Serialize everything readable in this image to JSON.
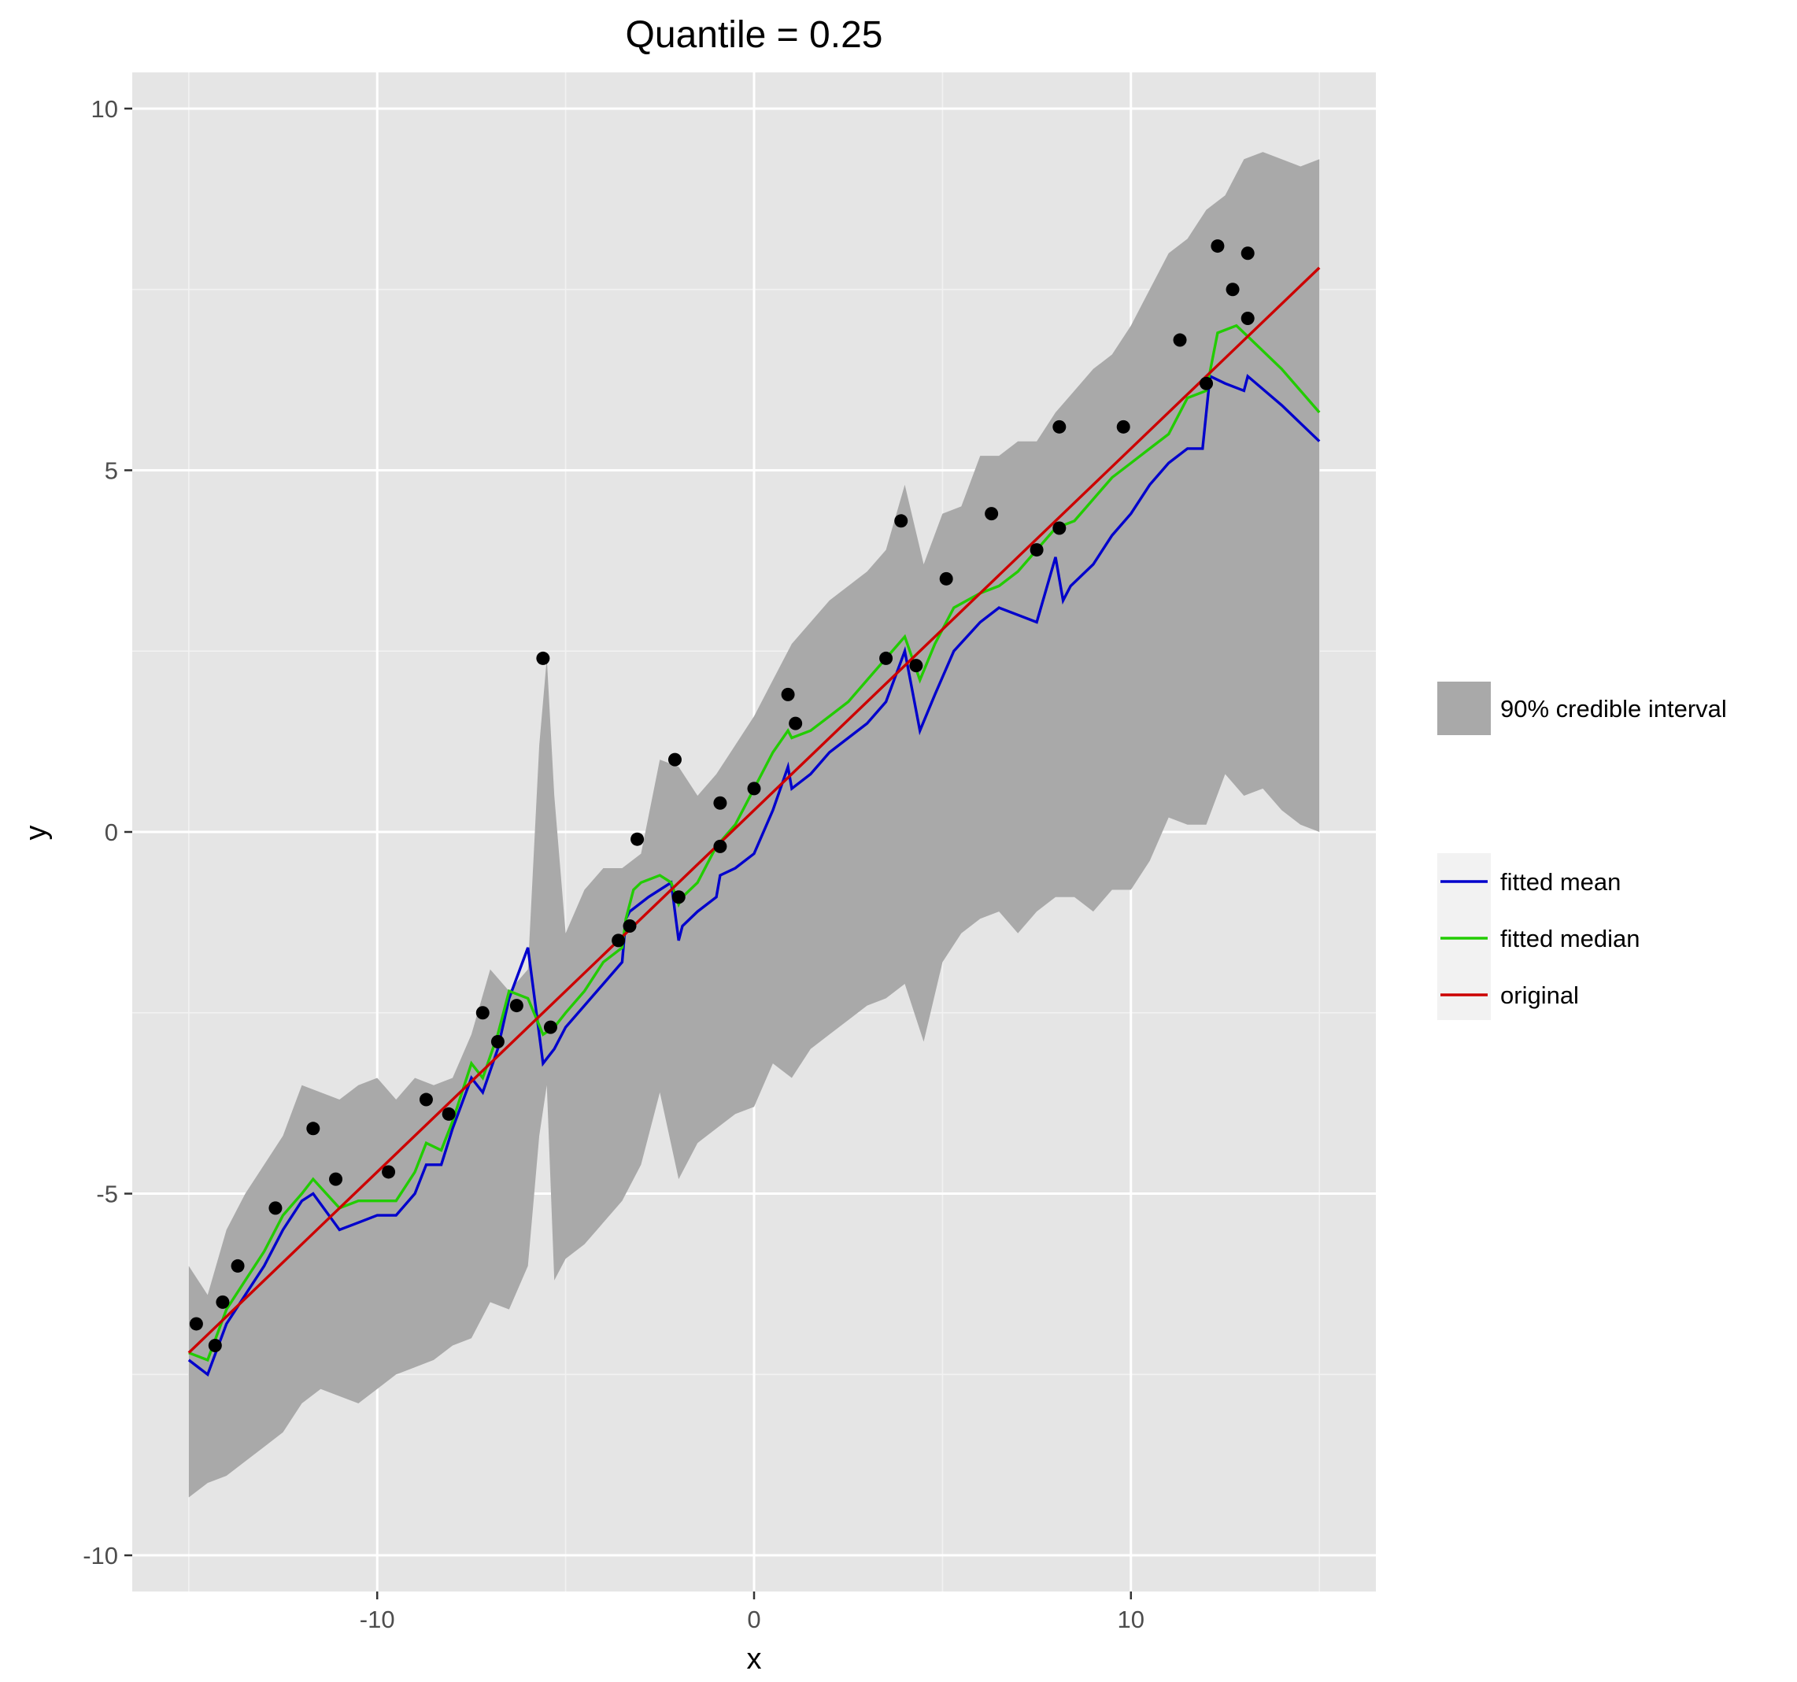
{
  "chart_data": {
    "type": "line",
    "title": "Quantile = 0.25",
    "xlabel": "x",
    "ylabel": "y",
    "xlim": [
      -16.5,
      16.5
    ],
    "ylim": [
      -10.5,
      10.5
    ],
    "x_ticks": [
      -10,
      0,
      10
    ],
    "y_ticks": [
      10,
      5,
      0,
      -5,
      -10
    ],
    "x_tick_labels": [
      "-10",
      "0",
      "10"
    ],
    "y_tick_labels": [
      "10",
      "5",
      "0",
      "-5",
      "-10"
    ],
    "grid": true,
    "legend_position": "right",
    "colors": {
      "panel": "#e5e5e5",
      "grid": "#ffffff",
      "band": "#a9a9a9",
      "mean": "#0000cc",
      "median": "#22cc00",
      "original": "#cc0000",
      "points": "#000000"
    },
    "legend": {
      "band_label": "90% credible interval",
      "line_labels": [
        "fitted mean",
        "fitted median",
        "original"
      ]
    },
    "band": {
      "x": [
        -15,
        -14.5,
        -14,
        -13.5,
        -13,
        -12.5,
        -12,
        -11.5,
        -11,
        -10.5,
        -10,
        -9.5,
        -9,
        -8.5,
        -8,
        -7.5,
        -7,
        -6.5,
        -6,
        -5.7,
        -5.5,
        -5.3,
        -5,
        -4.5,
        -4,
        -3.5,
        -3,
        -2.5,
        -2,
        -1.5,
        -1,
        -0.5,
        0,
        0.5,
        1,
        1.5,
        2,
        2.5,
        3,
        3.5,
        4,
        4.5,
        5,
        5.5,
        6,
        6.5,
        7,
        7.5,
        8,
        8.5,
        9,
        9.5,
        10,
        10.5,
        11,
        11.5,
        12,
        12.5,
        13,
        13.5,
        14,
        14.5,
        15
      ],
      "upper": [
        -6.0,
        -6.4,
        -5.5,
        -5.0,
        -4.6,
        -4.2,
        -3.5,
        -3.6,
        -3.7,
        -3.5,
        -3.4,
        -3.7,
        -3.4,
        -3.5,
        -3.4,
        -2.8,
        -1.9,
        -2.2,
        -1.9,
        1.2,
        2.4,
        0.5,
        -1.4,
        -0.8,
        -0.5,
        -0.5,
        -0.3,
        1.0,
        0.9,
        0.5,
        0.8,
        1.2,
        1.6,
        2.1,
        2.6,
        2.9,
        3.2,
        3.4,
        3.6,
        3.9,
        4.8,
        3.7,
        4.4,
        4.5,
        5.2,
        5.2,
        5.4,
        5.4,
        5.8,
        6.1,
        6.4,
        6.6,
        7.0,
        7.5,
        8.0,
        8.2,
        8.6,
        8.8,
        9.3,
        9.4,
        9.3,
        9.2,
        9.3
      ],
      "lower": [
        -9.2,
        -9.0,
        -8.9,
        -8.7,
        -8.5,
        -8.3,
        -7.9,
        -7.7,
        -7.8,
        -7.9,
        -7.7,
        -7.5,
        -7.4,
        -7.3,
        -7.1,
        -7.0,
        -6.5,
        -6.6,
        -6.0,
        -4.2,
        -3.5,
        -6.2,
        -5.9,
        -5.7,
        -5.4,
        -5.1,
        -4.6,
        -3.6,
        -4.8,
        -4.3,
        -4.1,
        -3.9,
        -3.8,
        -3.2,
        -3.4,
        -3.0,
        -2.8,
        -2.6,
        -2.4,
        -2.3,
        -2.1,
        -2.9,
        -1.8,
        -1.4,
        -1.2,
        -1.1,
        -1.4,
        -1.1,
        -0.9,
        -0.9,
        -1.1,
        -0.8,
        -0.8,
        -0.4,
        0.2,
        0.1,
        0.1,
        0.8,
        0.5,
        0.6,
        0.3,
        0.1,
        0.0
      ]
    },
    "series": [
      {
        "name": "fitted mean",
        "x": [
          -15,
          -14.5,
          -14,
          -13.5,
          -13,
          -12.5,
          -12,
          -11.7,
          -11,
          -10.5,
          -10,
          -9.5,
          -9,
          -8.7,
          -8.3,
          -8,
          -7.5,
          -7.2,
          -6.8,
          -6.5,
          -6,
          -5.6,
          -5.3,
          -5,
          -4.5,
          -4,
          -3.5,
          -3.4,
          -3.3,
          -2.8,
          -2.2,
          -2,
          -1.9,
          -1.5,
          -1,
          -0.9,
          -0.5,
          0,
          0.5,
          0.9,
          1,
          1.5,
          2,
          2.5,
          3,
          3.5,
          4,
          4.4,
          4.8,
          5.3,
          6,
          6.5,
          7,
          7.5,
          8,
          8.2,
          8.4,
          9,
          9.5,
          10,
          10.5,
          11,
          11.5,
          11.9,
          12.1,
          12.5,
          13,
          13.1,
          14,
          15
        ],
        "values": [
          -7.3,
          -7.5,
          -6.8,
          -6.4,
          -6.0,
          -5.5,
          -5.1,
          -5.0,
          -5.5,
          -5.4,
          -5.3,
          -5.3,
          -5.0,
          -4.6,
          -4.6,
          -4.1,
          -3.4,
          -3.6,
          -3.0,
          -2.3,
          -1.6,
          -3.2,
          -3.0,
          -2.7,
          -2.4,
          -2.1,
          -1.8,
          -1.2,
          -1.1,
          -0.9,
          -0.7,
          -1.5,
          -1.3,
          -1.1,
          -0.9,
          -0.6,
          -0.5,
          -0.3,
          0.3,
          0.9,
          0.6,
          0.8,
          1.1,
          1.3,
          1.5,
          1.8,
          2.5,
          1.4,
          1.9,
          2.5,
          2.9,
          3.1,
          3.0,
          2.9,
          3.8,
          3.2,
          3.4,
          3.7,
          4.1,
          4.4,
          4.8,
          5.1,
          5.3,
          5.3,
          6.3,
          6.2,
          6.1,
          6.3,
          5.9,
          5.4
        ]
      },
      {
        "name": "fitted median",
        "x": [
          -15,
          -14.5,
          -14,
          -13.5,
          -13,
          -12.5,
          -12,
          -11.7,
          -11,
          -10.5,
          -10,
          -9.5,
          -9,
          -8.7,
          -8.3,
          -8,
          -7.5,
          -7.2,
          -6.8,
          -6.5,
          -6,
          -5.6,
          -5.3,
          -5,
          -4.5,
          -4,
          -3.5,
          -3.4,
          -3.2,
          -3,
          -2.5,
          -2.2,
          -2,
          -1.9,
          -1.5,
          -1,
          -0.5,
          0,
          0.5,
          0.9,
          1,
          1.5,
          2,
          2.5,
          3,
          3.5,
          4,
          4.4,
          4.8,
          5.3,
          6,
          6.5,
          7,
          7.5,
          8,
          8.5,
          9,
          9.5,
          10,
          10.5,
          11,
          11.5,
          12,
          12.3,
          12.8,
          13.2,
          14,
          15
        ],
        "values": [
          -7.2,
          -7.3,
          -6.6,
          -6.2,
          -5.8,
          -5.3,
          -5.0,
          -4.8,
          -5.2,
          -5.1,
          -5.1,
          -5.1,
          -4.7,
          -4.3,
          -4.4,
          -4.0,
          -3.2,
          -3.4,
          -2.8,
          -2.2,
          -2.3,
          -2.8,
          -2.7,
          -2.5,
          -2.2,
          -1.8,
          -1.6,
          -1.2,
          -0.8,
          -0.7,
          -0.6,
          -0.7,
          -1.0,
          -0.9,
          -0.7,
          -0.2,
          0.1,
          0.6,
          1.1,
          1.4,
          1.3,
          1.4,
          1.6,
          1.8,
          2.1,
          2.4,
          2.7,
          2.1,
          2.6,
          3.1,
          3.3,
          3.4,
          3.6,
          3.9,
          4.2,
          4.3,
          4.6,
          4.9,
          5.1,
          5.3,
          5.5,
          6.0,
          6.1,
          6.9,
          7.0,
          6.8,
          6.4,
          5.8
        ]
      },
      {
        "name": "original",
        "x": [
          -15,
          15
        ],
        "values": [
          -7.2,
          7.8
        ]
      }
    ],
    "points": {
      "x": [
        -14.8,
        -14.3,
        -14.1,
        -13.7,
        -12.7,
        -11.7,
        -11.1,
        -9.7,
        -8.7,
        -8.1,
        -7.2,
        -6.8,
        -6.3,
        -5.6,
        -5.4,
        -3.6,
        -3.3,
        -3.1,
        -2.1,
        -2.0,
        -0.9,
        -0.9,
        0,
        0.9,
        1.1,
        3.5,
        3.9,
        4.3,
        5.1,
        6.3,
        7.5,
        8.1,
        8.1,
        9.8,
        11.3,
        12.0,
        12.3,
        12.7,
        13.1,
        13.1
      ],
      "y": [
        -6.8,
        -7.1,
        -6.5,
        -6.0,
        -5.2,
        -4.1,
        -4.8,
        -4.7,
        -3.7,
        -3.9,
        -2.5,
        -2.9,
        -2.4,
        2.4,
        -2.7,
        -1.5,
        -1.3,
        -0.1,
        1.0,
        -0.9,
        -0.2,
        0.4,
        0.6,
        1.9,
        1.5,
        2.4,
        4.3,
        2.3,
        3.5,
        4.4,
        3.9,
        5.6,
        4.2,
        5.6,
        6.8,
        6.2,
        8.1,
        7.5,
        8.0,
        7.1
      ]
    }
  }
}
